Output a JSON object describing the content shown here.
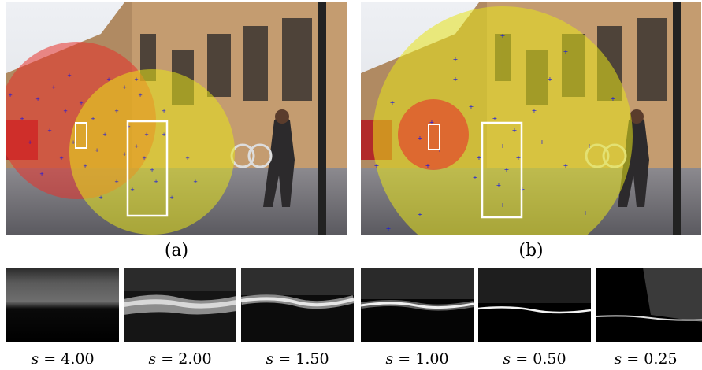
{
  "panels": [
    {
      "id": "a",
      "label": "(a)"
    },
    {
      "id": "b",
      "label": "(b)"
    }
  ],
  "scales": [
    {
      "s_symbol": "s",
      "equals": "=",
      "value": "4.00"
    },
    {
      "s_symbol": "s",
      "equals": "=",
      "value": "2.00"
    },
    {
      "s_symbol": "s",
      "equals": "=",
      "value": "1.50"
    },
    {
      "s_symbol": "s",
      "equals": "=",
      "value": "1.00"
    },
    {
      "s_symbol": "s",
      "equals": "=",
      "value": "0.50"
    },
    {
      "s_symbol": "s",
      "equals": "=",
      "value": "0.25"
    }
  ],
  "colors": {
    "red_region": "#e8322a",
    "yellow_region": "#e8e41a",
    "sample_points": "#1414e6",
    "box_outline": "#ffffff"
  },
  "icons": [
    "plus-marker"
  ]
}
